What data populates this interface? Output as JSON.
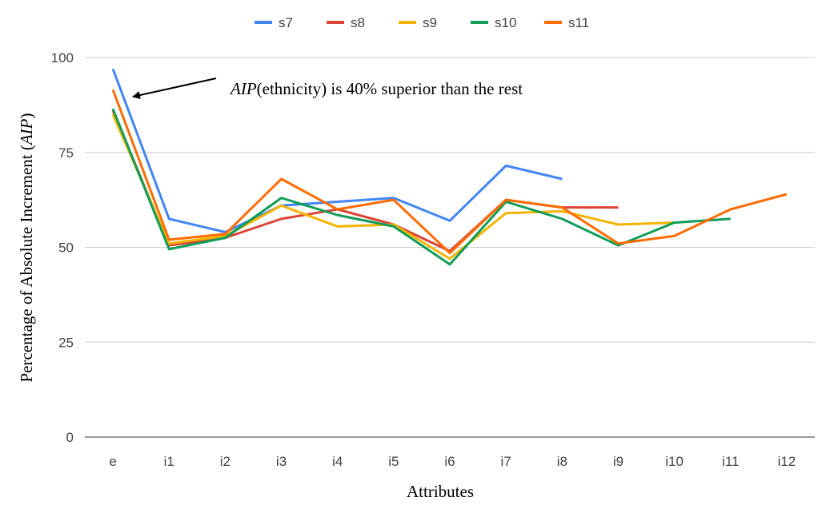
{
  "chart_data": {
    "type": "line",
    "x_label": "Attributes",
    "y_label": [
      "Percentage of Absolute Increment (",
      "AIP",
      ")"
    ],
    "annotation": [
      "AIP",
      "(ethnicity)",
      " is 40% superior than the rest"
    ],
    "categories": [
      "e",
      "i1",
      "i2",
      "i3",
      "i4",
      "i5",
      "i6",
      "i7",
      "i8",
      "i9",
      "i10",
      "i11",
      "i12"
    ],
    "ylim": [
      0,
      100
    ],
    "yticks": [
      0,
      25,
      50,
      75,
      100
    ],
    "grid": true,
    "legend": "top",
    "series": [
      {
        "name": "s7",
        "color": "#4285f4",
        "values": [
          97,
          57.5,
          54,
          61,
          62,
          63,
          57,
          71.5,
          68,
          null,
          null,
          null,
          null
        ]
      },
      {
        "name": "s8",
        "color": "#db4437",
        "values": [
          86,
          50.5,
          52.5,
          57.5,
          60,
          56,
          49,
          62.5,
          60.5,
          60.5,
          null,
          null,
          null
        ]
      },
      {
        "name": "s9",
        "color": "#f4b400",
        "values": [
          85,
          51,
          53,
          61,
          55.5,
          56,
          47,
          59,
          59.5,
          56,
          56.5,
          null,
          null
        ]
      },
      {
        "name": "s10",
        "color": "#0f9d58",
        "values": [
          86.5,
          49.5,
          52.5,
          63,
          58.5,
          55.5,
          45.5,
          62,
          57.5,
          50.5,
          56.5,
          57.5,
          null
        ]
      },
      {
        "name": "s11",
        "color": "#ff6d01",
        "values": [
          91.5,
          52,
          53.5,
          68,
          60,
          62.5,
          48.5,
          62.5,
          60.5,
          51,
          53,
          60,
          64
        ]
      }
    ]
  }
}
